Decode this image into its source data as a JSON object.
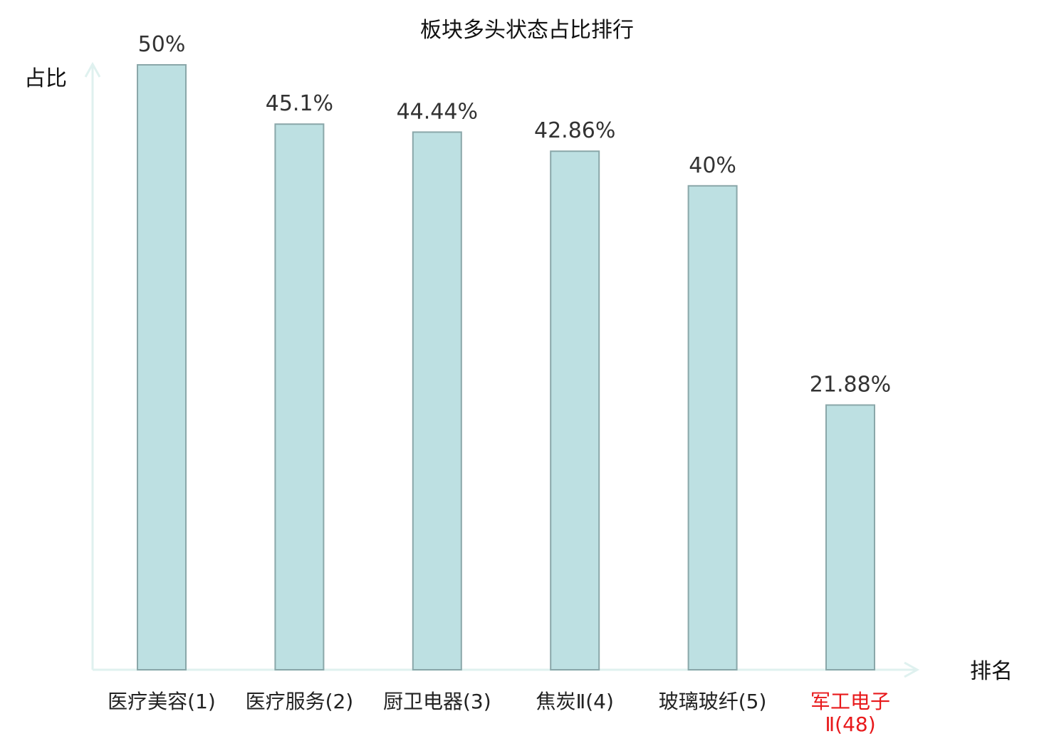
{
  "colors": {
    "bar_fill": "#bde0e2",
    "bar_stroke": "#8aa7a9",
    "axis": "#dff1ef",
    "highlight_text": "#e8191b"
  },
  "chart_data": {
    "type": "bar",
    "title": "板块多头状态占比排行",
    "ylabel": "占比",
    "xlabel": "排名",
    "ylim": [
      0,
      50
    ],
    "grid": false,
    "categories": [
      "医疗美容(1)",
      "医疗服务(2)",
      "厨卫电器(3)",
      "焦炭Ⅱ(4)",
      "玻璃玻纤(5)",
      "军工电子Ⅱ(48)"
    ],
    "category_lines": [
      [
        "医疗美容(1)"
      ],
      [
        "医疗服务(2)"
      ],
      [
        "厨卫电器(3)"
      ],
      [
        "焦炭Ⅱ(4)"
      ],
      [
        "玻璃玻纤(5)"
      ],
      [
        "军工电子",
        "Ⅱ(48)"
      ]
    ],
    "values": [
      50,
      45.1,
      44.44,
      42.86,
      40,
      21.88
    ],
    "value_labels": [
      "50%",
      "45.1%",
      "44.44%",
      "42.86%",
      "40%",
      "21.88%"
    ],
    "highlighted_category": "军工电子Ⅱ(48)"
  }
}
